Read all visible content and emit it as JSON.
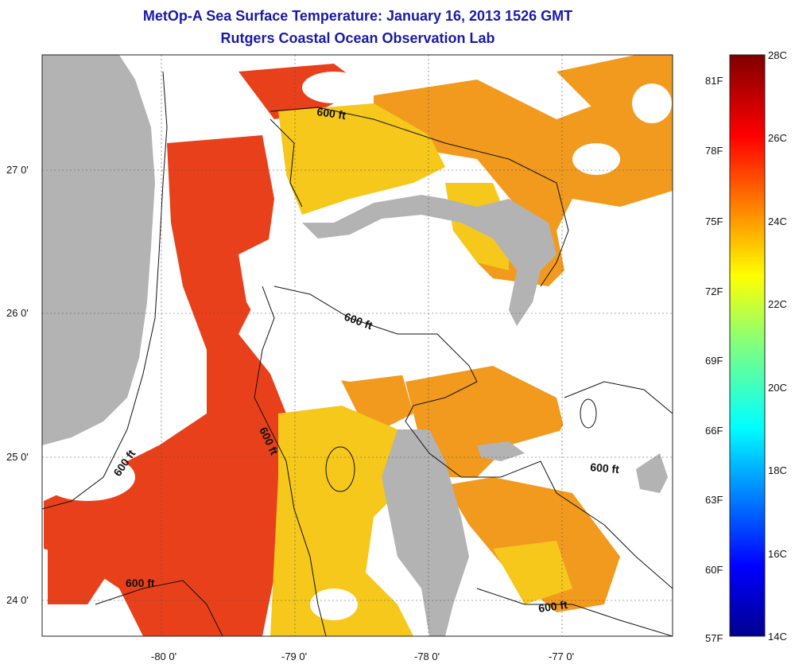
{
  "header": {
    "title": "MetOp-A Sea Surface Temperature:  January 16, 2013 1526 GMT",
    "subtitle": "Rutgers Coastal Ocean Observation Lab"
  },
  "axes": {
    "x_ticks": [
      "-80 0'",
      "-79 0'",
      "-78 0'",
      "-77 0'"
    ],
    "y_ticks": [
      "27 0'",
      "26 0'",
      "25 0'",
      "24 0'"
    ]
  },
  "contours": {
    "label": "600 ft",
    "count": 6
  },
  "colorbar": {
    "celsius": [
      "28C",
      "26C",
      "24C",
      "22C",
      "20C",
      "18C",
      "16C",
      "14C"
    ],
    "fahrenheit": [
      "81F",
      "78F",
      "75F",
      "72F",
      "69F",
      "66F",
      "63F",
      "60F",
      "57F"
    ],
    "range_c": [
      14,
      28
    ],
    "colormap": "jet"
  },
  "colors": {
    "title": "#1a1aa6",
    "land": "#b3b3b3",
    "cloud": "#ffffff",
    "warm": "#e8401a",
    "mid": "#f29a1e",
    "cool": "#f6d21c"
  }
}
